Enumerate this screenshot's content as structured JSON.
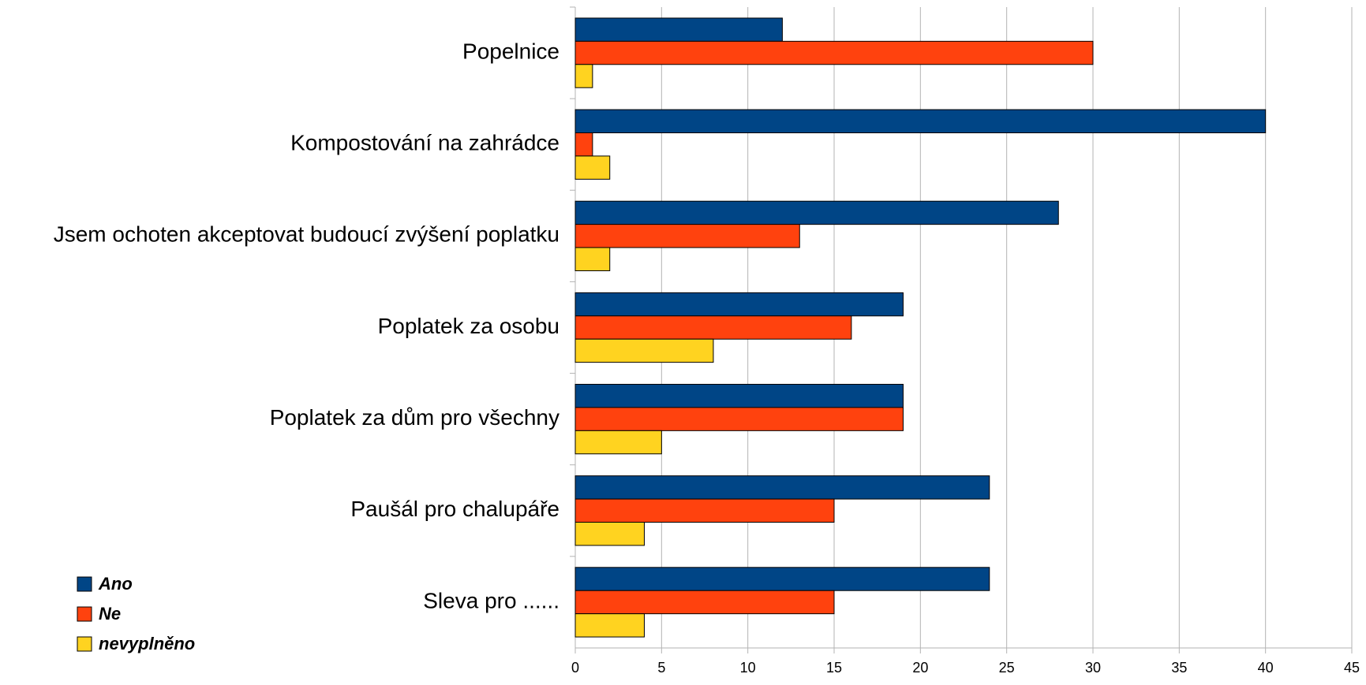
{
  "chart_data": {
    "type": "hbar",
    "categories": [
      "Popelnice",
      "Kompostování na zahrádce",
      "Jsem ochoten akceptovat budoucí zvýšení poplatku",
      "Poplatek za osobu",
      "Poplatek za dům pro všechny",
      "Paušál pro chalupáře",
      "Sleva pro ......"
    ],
    "series": [
      {
        "name": "Ano",
        "color": "#004586",
        "values": [
          12,
          40,
          28,
          19,
          19,
          24,
          24
        ]
      },
      {
        "name": "Ne",
        "color": "#ff420e",
        "values": [
          30,
          1,
          13,
          16,
          19,
          15,
          15
        ]
      },
      {
        "name": "nevyplněno",
        "color": "#ffd320",
        "values": [
          1,
          2,
          2,
          8,
          5,
          4,
          4
        ]
      }
    ],
    "xlim": [
      0,
      45
    ],
    "xticks": [
      0,
      5,
      10,
      15,
      20,
      25,
      30,
      35,
      40,
      45
    ],
    "grid": true,
    "legend": "bottom-left"
  }
}
